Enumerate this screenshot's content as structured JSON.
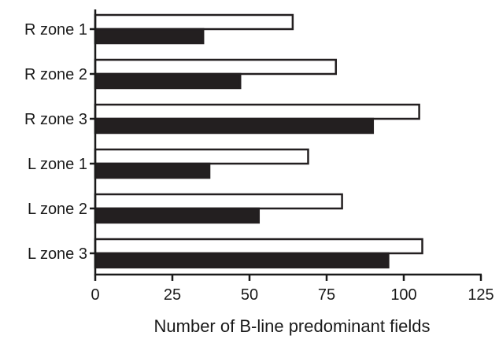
{
  "chart_data": {
    "type": "bar",
    "orientation": "horizontal",
    "categories": [
      "R zone 1",
      "R zone 2",
      "R zone 3",
      "L zone 1",
      "L zone 2",
      "L zone 3"
    ],
    "series": [
      {
        "color": "#ffffff",
        "values": [
          64,
          78,
          105,
          69,
          80,
          106
        ]
      },
      {
        "color": "#231f20",
        "values": [
          35,
          47,
          90,
          37,
          53,
          95
        ]
      }
    ],
    "xlabel": "Number of B-line predominant fields",
    "ylabel": "",
    "title": "",
    "xlim": [
      0,
      125
    ],
    "xticks": [
      "0",
      "25",
      "50",
      "75",
      "100",
      "125"
    ],
    "grid": false,
    "legend": "none"
  }
}
